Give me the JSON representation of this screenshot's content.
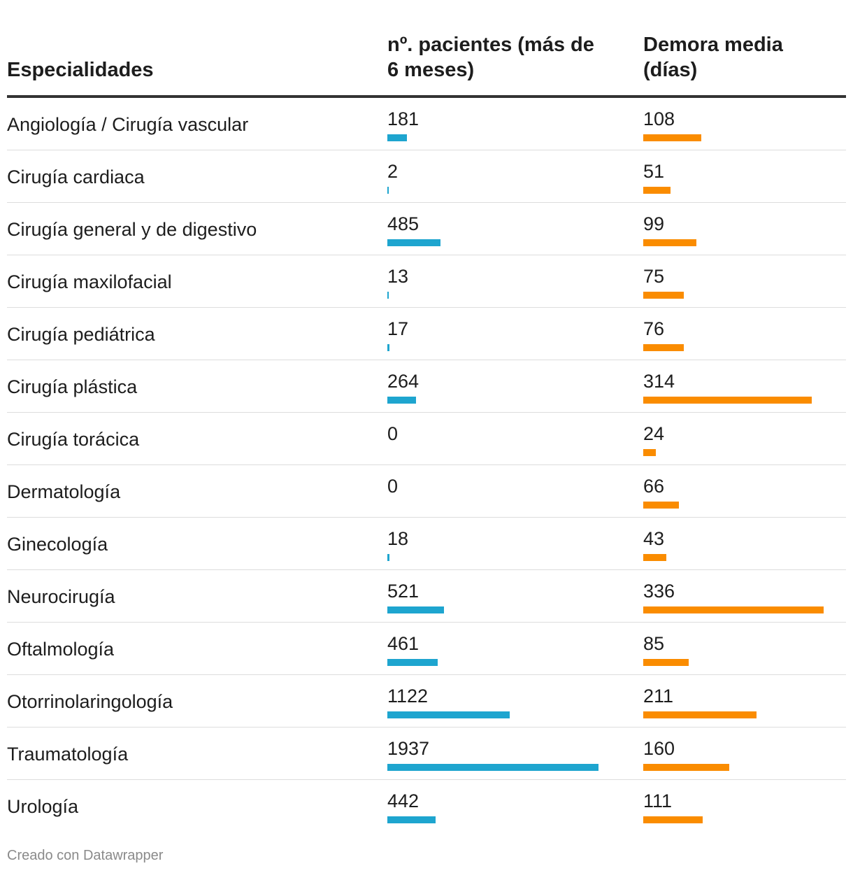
{
  "header": {
    "specialty_label": "Especialidades",
    "patients_label": "nº. pacientes (más de 6 meses)",
    "delay_label": "Demora media (días)"
  },
  "colors": {
    "patients_bar": "#1ea5cf",
    "delay_bar": "#fa8c00"
  },
  "chart_data": {
    "type": "table",
    "columns": [
      "Especialidades",
      "nº. pacientes (más de 6 meses)",
      "Demora media (días)"
    ],
    "scales": {
      "patients_max": 1937,
      "delay_max": 336
    },
    "rows": [
      {
        "name": "Angiología / Cirugía vascular",
        "patients": 181,
        "delay": 108
      },
      {
        "name": "Cirugía cardiaca",
        "patients": 2,
        "delay": 51
      },
      {
        "name": "Cirugía general y de digestivo",
        "patients": 485,
        "delay": 99
      },
      {
        "name": "Cirugía maxilofacial",
        "patients": 13,
        "delay": 75
      },
      {
        "name": "Cirugía pediátrica",
        "patients": 17,
        "delay": 76
      },
      {
        "name": "Cirugía plástica",
        "patients": 264,
        "delay": 314
      },
      {
        "name": "Cirugía torácica",
        "patients": 0,
        "delay": 24
      },
      {
        "name": "Dermatología",
        "patients": 0,
        "delay": 66
      },
      {
        "name": "Ginecología",
        "patients": 18,
        "delay": 43
      },
      {
        "name": "Neurocirugía",
        "patients": 521,
        "delay": 336
      },
      {
        "name": "Oftalmología",
        "patients": 461,
        "delay": 85
      },
      {
        "name": "Otorrinolaringología",
        "patients": 1122,
        "delay": 211
      },
      {
        "name": "Traumatología",
        "patients": 1937,
        "delay": 160
      },
      {
        "name": "Urología",
        "patients": 442,
        "delay": 111
      }
    ]
  },
  "footer": {
    "credit": "Creado con Datawrapper"
  }
}
